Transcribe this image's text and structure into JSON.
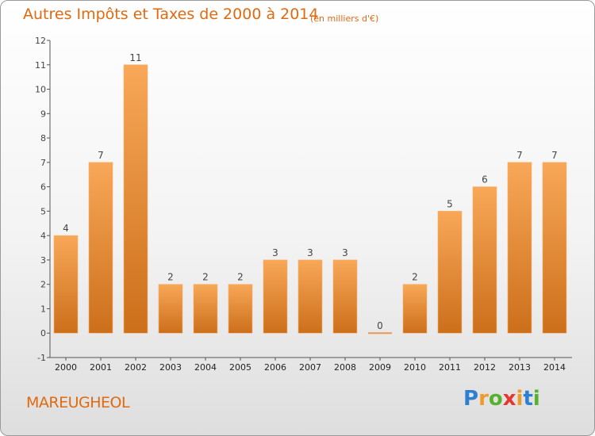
{
  "title": "Autres Impôts et Taxes de 2000 à 2014",
  "subtitle": "(en milliers d'€)",
  "place": "MAREUGHEOL",
  "logo": {
    "letters": [
      "P",
      "r",
      "o",
      "x",
      "i",
      "t",
      "i"
    ],
    "colors": [
      "#2f7fd0",
      "#f09a2a",
      "#56b22e",
      "#e8352e",
      "#f09a2a",
      "#2f7fd0",
      "#56b22e"
    ]
  },
  "colors": {
    "accent": "#e06a10",
    "bar_light": "#f8a858",
    "bar_dark": "#cc6f1b",
    "axis": "#555555",
    "text": "#444444"
  },
  "chart_data": {
    "type": "bar",
    "categories": [
      "2000",
      "2001",
      "2002",
      "2003",
      "2004",
      "2005",
      "2006",
      "2007",
      "2008",
      "2009",
      "2010",
      "2011",
      "2012",
      "2013",
      "2014"
    ],
    "values": [
      4,
      7,
      11,
      2,
      2,
      2,
      3,
      3,
      3,
      0,
      2,
      5,
      6,
      7,
      7
    ],
    "data_labels": [
      "4",
      "7",
      "11",
      "2",
      "2",
      "2",
      "3",
      "3",
      "3",
      "0",
      "2",
      "5",
      "6",
      "7",
      "7"
    ],
    "title": "Autres Impôts et Taxes de 2000 à 2014",
    "subtitle": "(en milliers d'€)",
    "xlabel": "",
    "ylabel": "",
    "ylim": [
      -1,
      12
    ],
    "yticks": [
      -1,
      0,
      1,
      2,
      3,
      4,
      5,
      6,
      7,
      8,
      9,
      10,
      11,
      12
    ],
    "grid": false,
    "legend": "none"
  }
}
